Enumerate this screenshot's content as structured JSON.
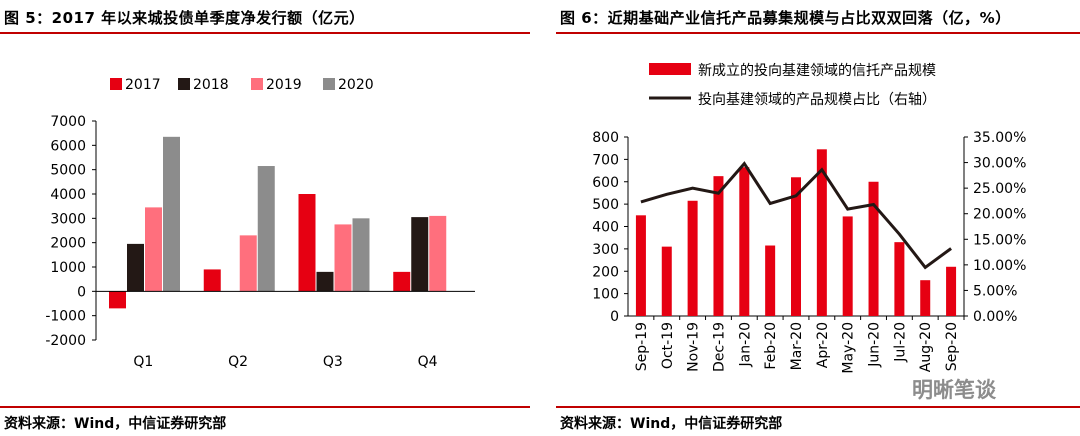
{
  "left": {
    "title": "图 5：2017 年以来城投债单季度净发行额（亿元）",
    "source": "资料来源：Wind，中信证券研究部"
  },
  "right": {
    "title": "图 6：近期基础产业信托产品募集规模与占比双双回落（亿，%）",
    "source": "资料来源：Wind，中信证券研究部"
  },
  "watermark": "明晰笔谈",
  "chart_data": [
    {
      "type": "bar",
      "title": "2017 年以来城投债单季度净发行额（亿元）",
      "categories": [
        "Q1",
        "Q2",
        "Q3",
        "Q4"
      ],
      "series": [
        {
          "name": "2017",
          "color": "#e60012",
          "values": [
            -700,
            900,
            4000,
            800
          ]
        },
        {
          "name": "2018",
          "color": "#231815",
          "values": [
            1950,
            0,
            800,
            3050
          ]
        },
        {
          "name": "2019",
          "color": "#ff6f7d",
          "values": [
            3450,
            2300,
            2750,
            3100
          ]
        },
        {
          "name": "2020",
          "color": "#8c8c8c",
          "values": [
            6350,
            5150,
            3000,
            null
          ]
        }
      ],
      "yticks": [
        "-2000",
        "-1000",
        "0",
        "1000",
        "2000",
        "3000",
        "4000",
        "5000",
        "6000",
        "7000"
      ],
      "ylim": [
        -2000,
        7000
      ],
      "legend": "top"
    },
    {
      "type": "bar+line",
      "title": "近期基础产业信托产品募集规模与占比双双回落（亿，%）",
      "categories": [
        "Sep-19",
        "Oct-19",
        "Nov-19",
        "Dec-19",
        "Jan-20",
        "Feb-20",
        "Mar-20",
        "Apr-20",
        "May-20",
        "Jun-20",
        "Jul-20",
        "Aug-20",
        "Sep-20"
      ],
      "bar_series": {
        "name": "新成立的投向基建领域的信托产品规模",
        "color": "#e60012",
        "values": [
          450,
          310,
          515,
          625,
          665,
          315,
          620,
          745,
          445,
          600,
          330,
          160,
          220
        ]
      },
      "line_series": {
        "name": "投向基建领域的产品规模占比（右轴）",
        "color": "#231815",
        "values": [
          22.3,
          23.8,
          25.0,
          24.0,
          29.8,
          22.0,
          23.5,
          28.6,
          20.9,
          21.8,
          16.0,
          9.5,
          13.2
        ]
      },
      "yticks_left": [
        "0",
        "100",
        "200",
        "300",
        "400",
        "500",
        "600",
        "700",
        "800"
      ],
      "yticks_right": [
        "0.00%",
        "5.00%",
        "10.00%",
        "15.00%",
        "20.00%",
        "25.00%",
        "30.00%",
        "35.00%"
      ],
      "ylim_left": [
        0,
        800
      ],
      "ylim_right": [
        0,
        35
      ],
      "legend": "top"
    }
  ]
}
